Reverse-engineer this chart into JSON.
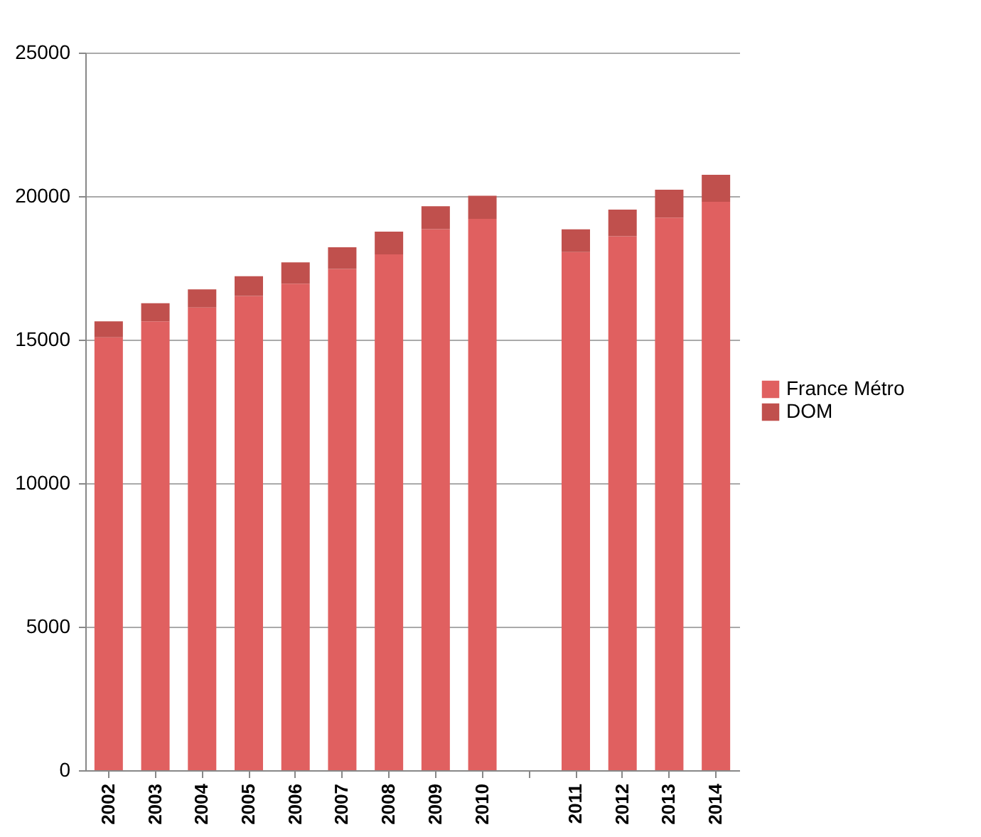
{
  "chart_data": {
    "type": "bar",
    "stacked": true,
    "categories": [
      "2002",
      "2003",
      "2004",
      "2005",
      "2006",
      "2007",
      "2008",
      "2009",
      "2010",
      null,
      "2011",
      "2012",
      "2013",
      "2014"
    ],
    "series": [
      {
        "name": "France Métro",
        "color": "#e06060",
        "values": [
          15080,
          15640,
          16120,
          16520,
          16950,
          17460,
          17970,
          18850,
          19210,
          null,
          18050,
          18600,
          19250,
          19800
        ]
      },
      {
        "name": "DOM",
        "color": "#c0504d",
        "values": [
          560,
          630,
          630,
          690,
          740,
          760,
          790,
          800,
          800,
          null,
          790,
          930,
          970,
          940
        ]
      }
    ],
    "ylim": [
      0,
      25000
    ],
    "yticks": [
      0,
      5000,
      10000,
      15000,
      20000,
      25000
    ],
    "grid": "y",
    "legend": "right"
  }
}
